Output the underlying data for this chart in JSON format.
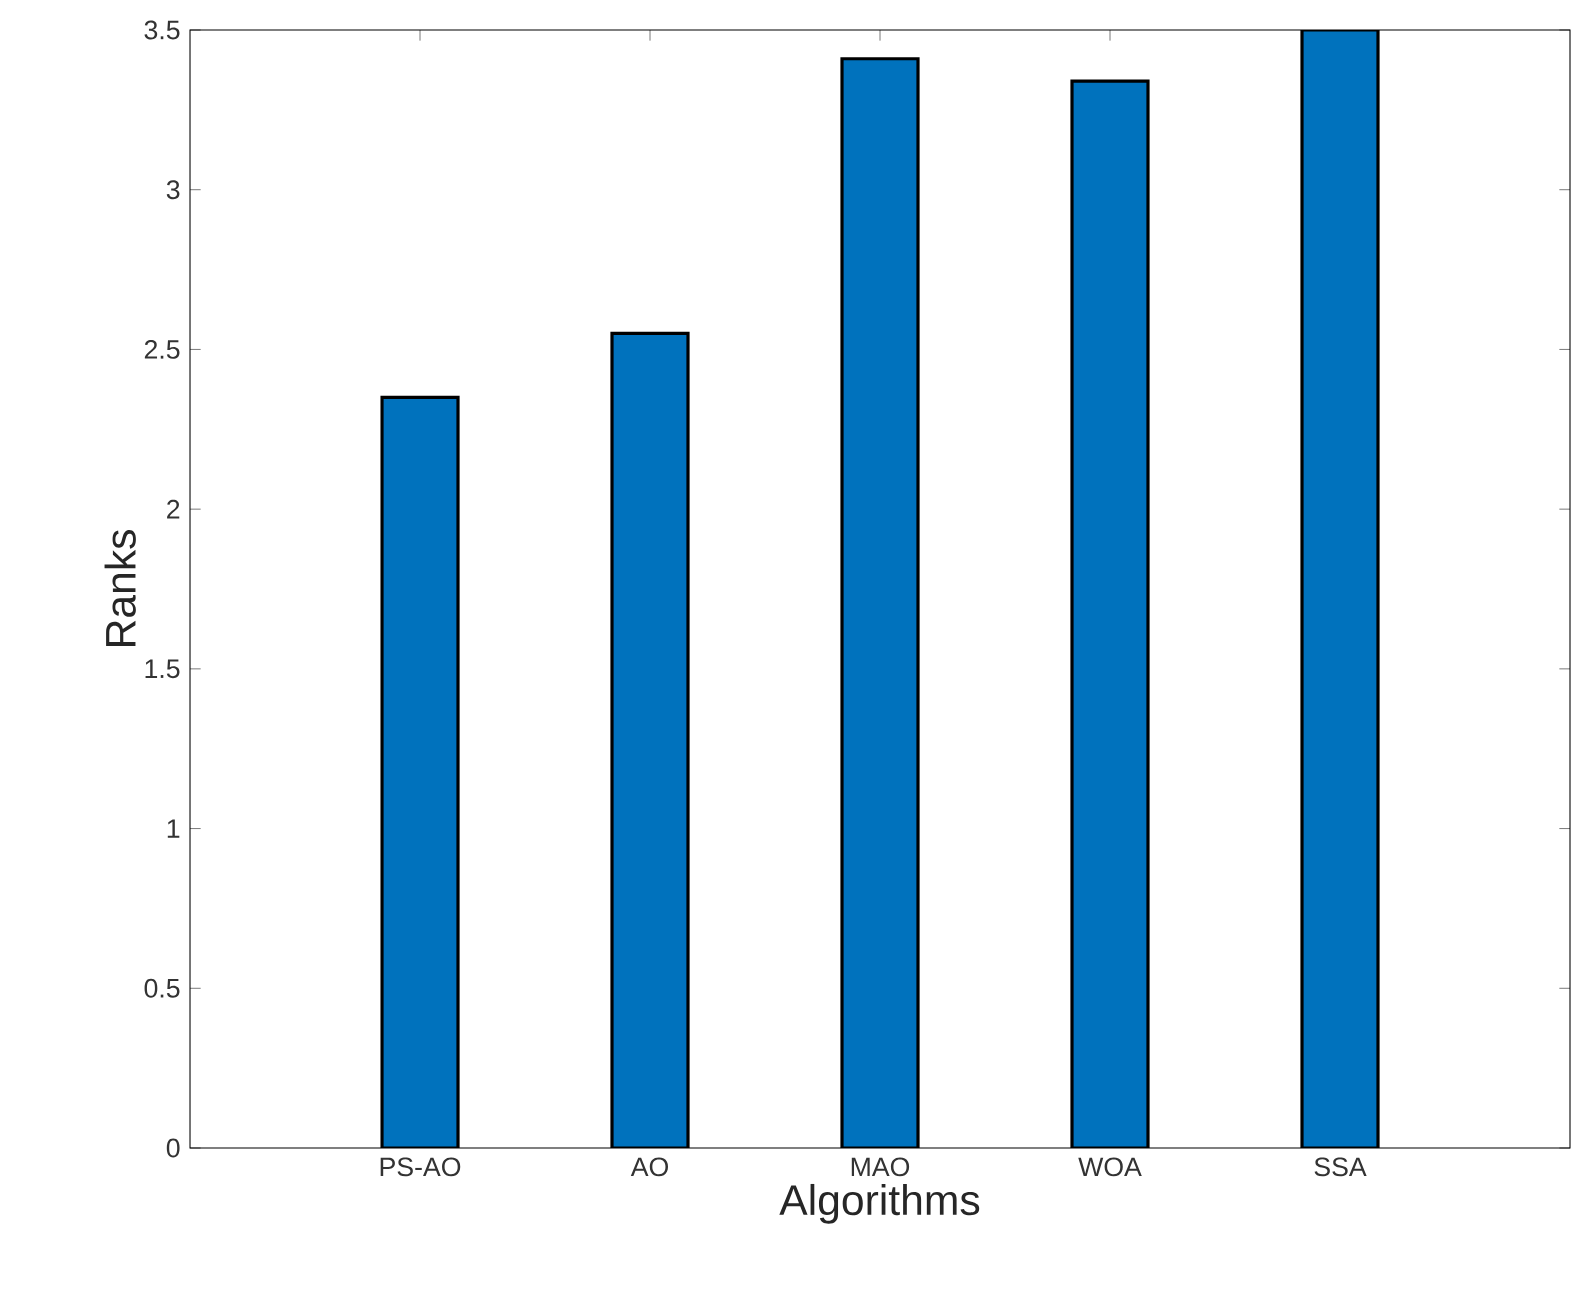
{
  "chart_data": {
    "type": "bar",
    "xlabel": "Algorithms",
    "ylabel": "Ranks",
    "categories": [
      "PS-AO",
      "AO",
      "MAO",
      "WOA",
      "SSA"
    ],
    "values": [
      2.35,
      2.55,
      3.41,
      3.34,
      3.5
    ],
    "color": "#0072bd",
    "ylim": [
      0,
      3.5
    ],
    "yticks": [
      0,
      0.5,
      1,
      1.5,
      2,
      2.5,
      3,
      3.5
    ],
    "grid": false
  }
}
